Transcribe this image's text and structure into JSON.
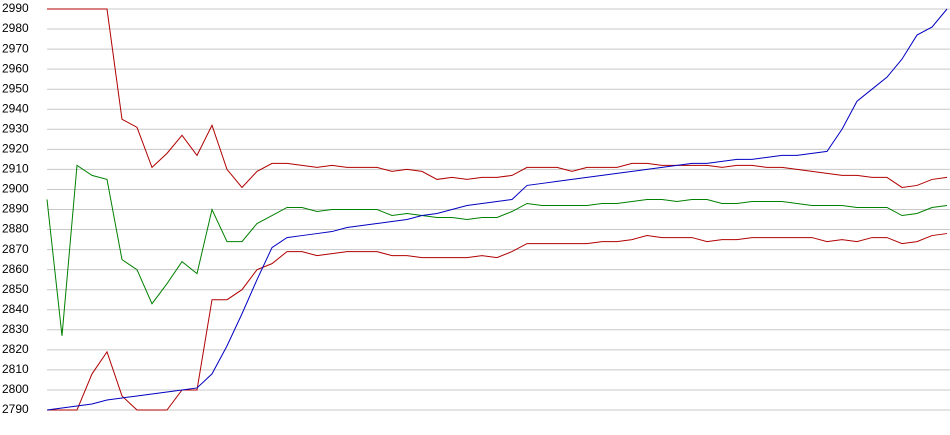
{
  "chart_data": {
    "type": "line",
    "ylim": [
      2790,
      2990
    ],
    "yticks": [
      2790,
      2800,
      2810,
      2820,
      2830,
      2840,
      2850,
      2860,
      2870,
      2880,
      2890,
      2900,
      2910,
      2920,
      2930,
      2940,
      2950,
      2960,
      2970,
      2980,
      2990
    ],
    "grid": true,
    "series": [
      {
        "color": "#b00000",
        "values": [
          2990,
          2990,
          2990,
          2990,
          2990,
          2935,
          2931,
          2911,
          2918,
          2927,
          2917,
          2932,
          2910,
          2901,
          2909,
          2913,
          2913,
          2912,
          2911,
          2912,
          2911,
          2911,
          2911,
          2909,
          2910,
          2909,
          2905,
          2906,
          2905,
          2906,
          2906,
          2907,
          2911,
          2911,
          2911,
          2909,
          2911,
          2911,
          2911,
          2913,
          2913,
          2912,
          2912,
          2912,
          2912,
          2911,
          2912,
          2912,
          2911,
          2911,
          2910,
          2909,
          2908,
          2907,
          2907,
          2906,
          2906,
          2901,
          2902,
          2905,
          2906
        ]
      },
      {
        "color": "#008000",
        "values": [
          2895,
          2827,
          2912,
          2907,
          2905,
          2865,
          2860,
          2843,
          2853,
          2864,
          2858,
          2890,
          2874,
          2874,
          2883,
          2887,
          2891,
          2891,
          2889,
          2890,
          2890,
          2890,
          2890,
          2887,
          2888,
          2887,
          2886,
          2886,
          2885,
          2886,
          2886,
          2889,
          2893,
          2892,
          2892,
          2892,
          2892,
          2893,
          2893,
          2894,
          2895,
          2895,
          2894,
          2895,
          2895,
          2893,
          2893,
          2894,
          2894,
          2894,
          2893,
          2892,
          2892,
          2892,
          2891,
          2891,
          2891,
          2887,
          2888,
          2891,
          2892
        ]
      },
      {
        "color": "#b00000",
        "values": [
          2790,
          2790,
          2790,
          2808,
          2819,
          2797,
          2790,
          2790,
          2790,
          2800,
          2800,
          2845,
          2845,
          2850,
          2860,
          2863,
          2869,
          2869,
          2867,
          2868,
          2869,
          2869,
          2869,
          2867,
          2867,
          2866,
          2866,
          2866,
          2866,
          2867,
          2866,
          2869,
          2873,
          2873,
          2873,
          2873,
          2873,
          2874,
          2874,
          2875,
          2877,
          2876,
          2876,
          2876,
          2874,
          2875,
          2875,
          2876,
          2876,
          2876,
          2876,
          2876,
          2874,
          2875,
          2874,
          2876,
          2876,
          2873,
          2874,
          2877,
          2878
        ]
      },
      {
        "color": "#0000c0",
        "values": [
          2790,
          2791,
          2792,
          2793,
          2795,
          2796,
          2797,
          2798,
          2799,
          2800,
          2801,
          2808,
          2822,
          2838,
          2855,
          2871,
          2876,
          2877,
          2878,
          2879,
          2881,
          2882,
          2883,
          2884,
          2885,
          2887,
          2888,
          2890,
          2892,
          2893,
          2894,
          2895,
          2902,
          2903,
          2904,
          2905,
          2906,
          2907,
          2908,
          2909,
          2910,
          2911,
          2912,
          2913,
          2913,
          2914,
          2915,
          2915,
          2916,
          2917,
          2917,
          2918,
          2919,
          2930,
          2944,
          2950,
          2956,
          2965,
          2977,
          2981,
          2990
        ]
      }
    ]
  }
}
